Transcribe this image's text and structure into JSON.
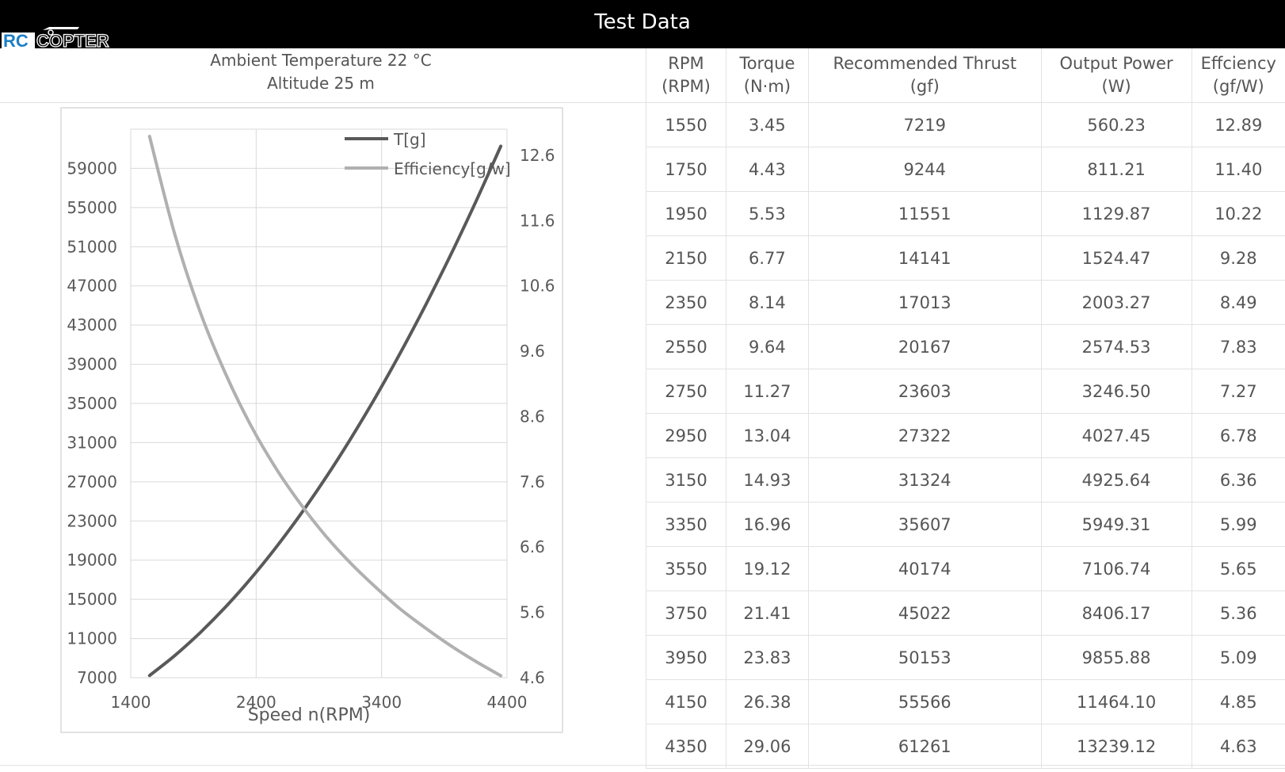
{
  "page": {
    "title": "Test Data"
  },
  "logo": {
    "text": "RC COPTER"
  },
  "conditions": {
    "temperature": "Ambient Temperature  22 °C",
    "altitude": "Altitude  25 m"
  },
  "chart_data": {
    "type": "line",
    "xlabel": "Speed n(RPM)",
    "xlim": [
      1400,
      4400
    ],
    "xticks": [
      "1400",
      "2400",
      "3400",
      "4400"
    ],
    "ylim_left": [
      7000,
      63000
    ],
    "yticks_left": [
      "7000",
      "11000",
      "15000",
      "19000",
      "23000",
      "27000",
      "31000",
      "35000",
      "39000",
      "43000",
      "47000",
      "51000",
      "55000",
      "59000"
    ],
    "ylim_right": [
      4.6,
      13.0
    ],
    "yticks_right": [
      "4.6",
      "5.6",
      "6.6",
      "7.6",
      "8.6",
      "9.6",
      "10.6",
      "11.6",
      "12.6"
    ],
    "grid": true,
    "legend_position": "top-right",
    "x": [
      1550,
      1750,
      1950,
      2150,
      2350,
      2550,
      2750,
      2950,
      3150,
      3350,
      3550,
      3750,
      3950,
      4150,
      4350
    ],
    "series": [
      {
        "name": "T[g]",
        "axis": "left",
        "color": "#595959",
        "values": [
          7219,
          9244,
          11551,
          14141,
          17013,
          20167,
          23603,
          27322,
          31324,
          35607,
          40174,
          45022,
          50153,
          55566,
          61261
        ]
      },
      {
        "name": "Efficiency[g/w]",
        "axis": "right",
        "color": "#b0b0b0",
        "values": [
          12.89,
          11.4,
          10.22,
          9.28,
          8.49,
          7.83,
          7.27,
          6.78,
          6.36,
          5.99,
          5.65,
          5.36,
          5.09,
          4.85,
          4.63
        ]
      }
    ]
  },
  "table": {
    "headers": [
      [
        "RPM",
        "(RPM)"
      ],
      [
        "Torque",
        "(N·m)"
      ],
      [
        "Recommended Thrust",
        "(gf)"
      ],
      [
        "Output Power",
        "(W)"
      ],
      [
        "Effciency",
        "(gf/W)"
      ]
    ],
    "rows": [
      [
        "1550",
        "3.45",
        "7219",
        "560.23",
        "12.89"
      ],
      [
        "1750",
        "4.43",
        "9244",
        "811.21",
        "11.40"
      ],
      [
        "1950",
        "5.53",
        "11551",
        "1129.87",
        "10.22"
      ],
      [
        "2150",
        "6.77",
        "14141",
        "1524.47",
        "9.28"
      ],
      [
        "2350",
        "8.14",
        "17013",
        "2003.27",
        "8.49"
      ],
      [
        "2550",
        "9.64",
        "20167",
        "2574.53",
        "7.83"
      ],
      [
        "2750",
        "11.27",
        "23603",
        "3246.50",
        "7.27"
      ],
      [
        "2950",
        "13.04",
        "27322",
        "4027.45",
        "6.78"
      ],
      [
        "3150",
        "14.93",
        "31324",
        "4925.64",
        "6.36"
      ],
      [
        "3350",
        "16.96",
        "35607",
        "5949.31",
        "5.99"
      ],
      [
        "3550",
        "19.12",
        "40174",
        "7106.74",
        "5.65"
      ],
      [
        "3750",
        "21.41",
        "45022",
        "8406.17",
        "5.36"
      ],
      [
        "3950",
        "23.83",
        "50153",
        "9855.88",
        "5.09"
      ],
      [
        "4150",
        "26.38",
        "55566",
        "11464.10",
        "4.85"
      ],
      [
        "4350",
        "29.06",
        "61261",
        "13239.12",
        "4.63"
      ]
    ]
  }
}
